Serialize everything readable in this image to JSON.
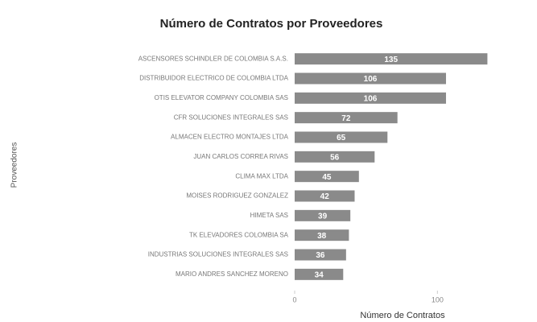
{
  "chart_data": {
    "type": "bar",
    "orientation": "horizontal",
    "title": "Número de Contratos por Proveedores",
    "x_label": "Número de Contratos",
    "y_label": "Proveedores",
    "categories": [
      "ASCENSORES SCHINDLER DE COLOMBIA S.A.S.",
      "DISTRIBUIDOR ELECTRICO DE COLOMBIA LTDA",
      "OTIS ELEVATOR COMPANY COLOMBIA SAS",
      "CFR SOLUCIONES INTEGRALES SAS",
      "ALMACEN ELECTRO MONTAJES LTDA",
      "JUAN CARLOS CORREA RIVAS",
      "CLIMA MAX LTDA",
      "MOISES RODRIGUEZ GONZALEZ",
      "HIMETA SAS",
      "TK ELEVADORES COLOMBIA SA",
      "INDUSTRIAS SOLUCIONES INTEGRALES SAS",
      "MARIO ANDRES SANCHEZ MORENO"
    ],
    "values": [
      135,
      106,
      106,
      72,
      65,
      56,
      45,
      42,
      39,
      38,
      36,
      34
    ],
    "color": "#8a8a8a",
    "xlim": [
      0,
      150
    ],
    "xticks": [
      0,
      100
    ]
  }
}
